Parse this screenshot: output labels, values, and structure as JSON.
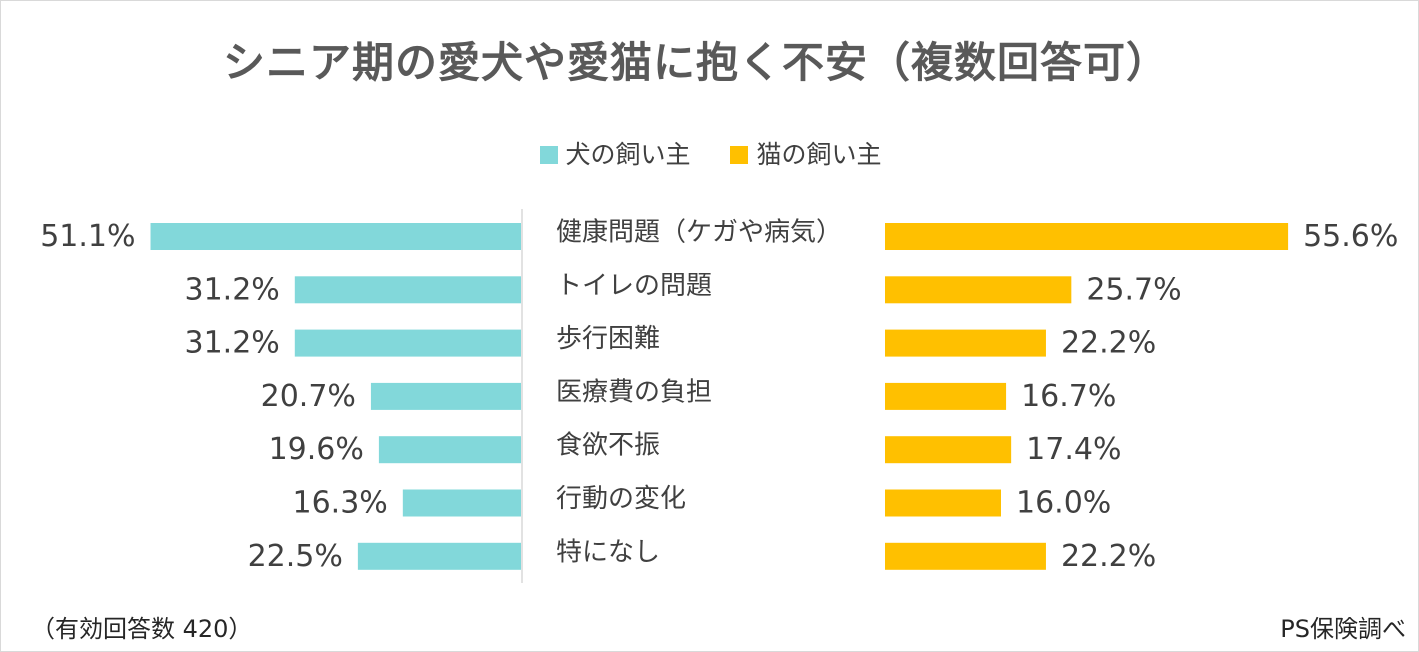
{
  "chart_data": {
    "type": "bar",
    "orientation": "horizontal-butterfly",
    "title": "シニア期の愛犬や愛猫に抱く不安（複数回答可）",
    "categories": [
      "健康問題（ケガや病気）",
      "トイレの問題",
      "歩行困難",
      "医療費の負担",
      "食欲不振",
      "行動の変化",
      "特になし"
    ],
    "series": [
      {
        "name": "犬の飼い主",
        "color": "#82D8DA",
        "values": [
          51.1,
          31.2,
          31.2,
          20.7,
          19.6,
          16.3,
          22.5
        ],
        "labels": [
          "51.1%",
          "31.2%",
          "31.2%",
          "20.7%",
          "19.6%",
          "16.3%",
          "22.5%"
        ]
      },
      {
        "name": "猫の飼い主",
        "color": "#FFC000",
        "values": [
          55.6,
          25.7,
          22.2,
          16.7,
          17.4,
          16.0,
          22.2
        ],
        "labels": [
          "55.6%",
          "25.7%",
          "22.2%",
          "16.7%",
          "17.4%",
          "16.0%",
          "22.2%"
        ]
      }
    ],
    "unit": "%",
    "xlim": [
      0,
      60
    ],
    "legend": "top-center"
  },
  "notes": {
    "sample": "（有効回答数 420）",
    "source": "PS保険調べ"
  }
}
